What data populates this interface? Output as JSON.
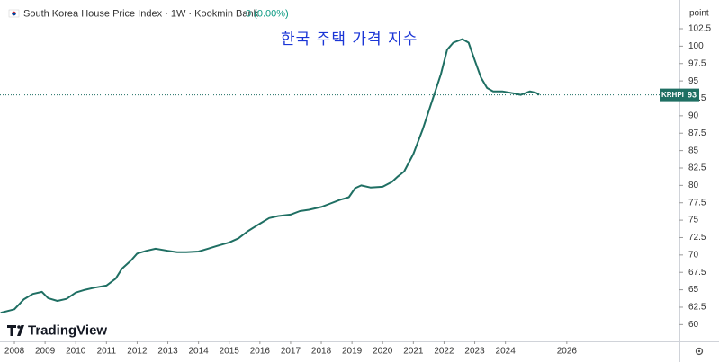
{
  "chart_data": {
    "type": "line",
    "title": "South Korea House Price Index · 1W · Kookmin Bank",
    "change": "0 (0.00%)",
    "annotation": "한국 주택 가격 지수",
    "y_axis_unit": "point",
    "brand": "TradingView",
    "last_value": 93,
    "x": [
      2007.55,
      2008.0,
      2008.3,
      2008.6,
      2008.9,
      2009.1,
      2009.4,
      2009.7,
      2010.0,
      2010.3,
      2010.6,
      2011.0,
      2011.3,
      2011.5,
      2011.8,
      2012.0,
      2012.3,
      2012.6,
      2013.0,
      2013.3,
      2013.6,
      2014.0,
      2014.3,
      2014.6,
      2015.0,
      2015.3,
      2015.6,
      2016.0,
      2016.3,
      2016.6,
      2017.0,
      2017.3,
      2017.6,
      2018.0,
      2018.3,
      2018.6,
      2018.9,
      2019.1,
      2019.3,
      2019.6,
      2020.0,
      2020.3,
      2020.5,
      2020.7,
      2021.0,
      2021.3,
      2021.6,
      2021.9,
      2022.1,
      2022.3,
      2022.6,
      2022.8,
      2023.0,
      2023.2,
      2023.4,
      2023.6,
      2023.9,
      2024.3,
      2024.5,
      2024.8,
      2025.0,
      2025.1
    ],
    "series": [
      {
        "name": "KRHPI",
        "color": "#1f6f63",
        "values": [
          61.7,
          62.2,
          63.6,
          64.4,
          64.7,
          63.8,
          63.4,
          63.7,
          64.6,
          65.0,
          65.3,
          65.6,
          66.6,
          68.0,
          69.2,
          70.2,
          70.6,
          70.9,
          70.6,
          70.4,
          70.4,
          70.5,
          70.9,
          71.3,
          71.8,
          72.4,
          73.4,
          74.5,
          75.3,
          75.6,
          75.8,
          76.3,
          76.5,
          76.9,
          77.4,
          77.9,
          78.3,
          79.6,
          80.0,
          79.7,
          79.8,
          80.5,
          81.3,
          82.0,
          84.5,
          88.0,
          92.0,
          96.0,
          99.5,
          100.5,
          101.0,
          100.5,
          98.0,
          95.5,
          94.0,
          93.5,
          93.5,
          93.2,
          93.0,
          93.5,
          93.3,
          93.0
        ]
      }
    ],
    "xlim": [
      2007.53,
      2029.67
    ],
    "xticks": [
      2008,
      2009,
      2010,
      2011,
      2012,
      2013,
      2014,
      2015,
      2016,
      2017,
      2018,
      2019,
      2020,
      2021,
      2022,
      2023,
      2024,
      2026
    ],
    "ylim": [
      57.85,
      106.63
    ],
    "yticks": [
      60,
      62.5,
      65,
      67.5,
      70,
      72.5,
      75,
      77.5,
      80,
      82.5,
      85,
      87.5,
      90,
      92.5,
      95,
      97.5,
      100,
      102.5
    ],
    "grid": false
  }
}
